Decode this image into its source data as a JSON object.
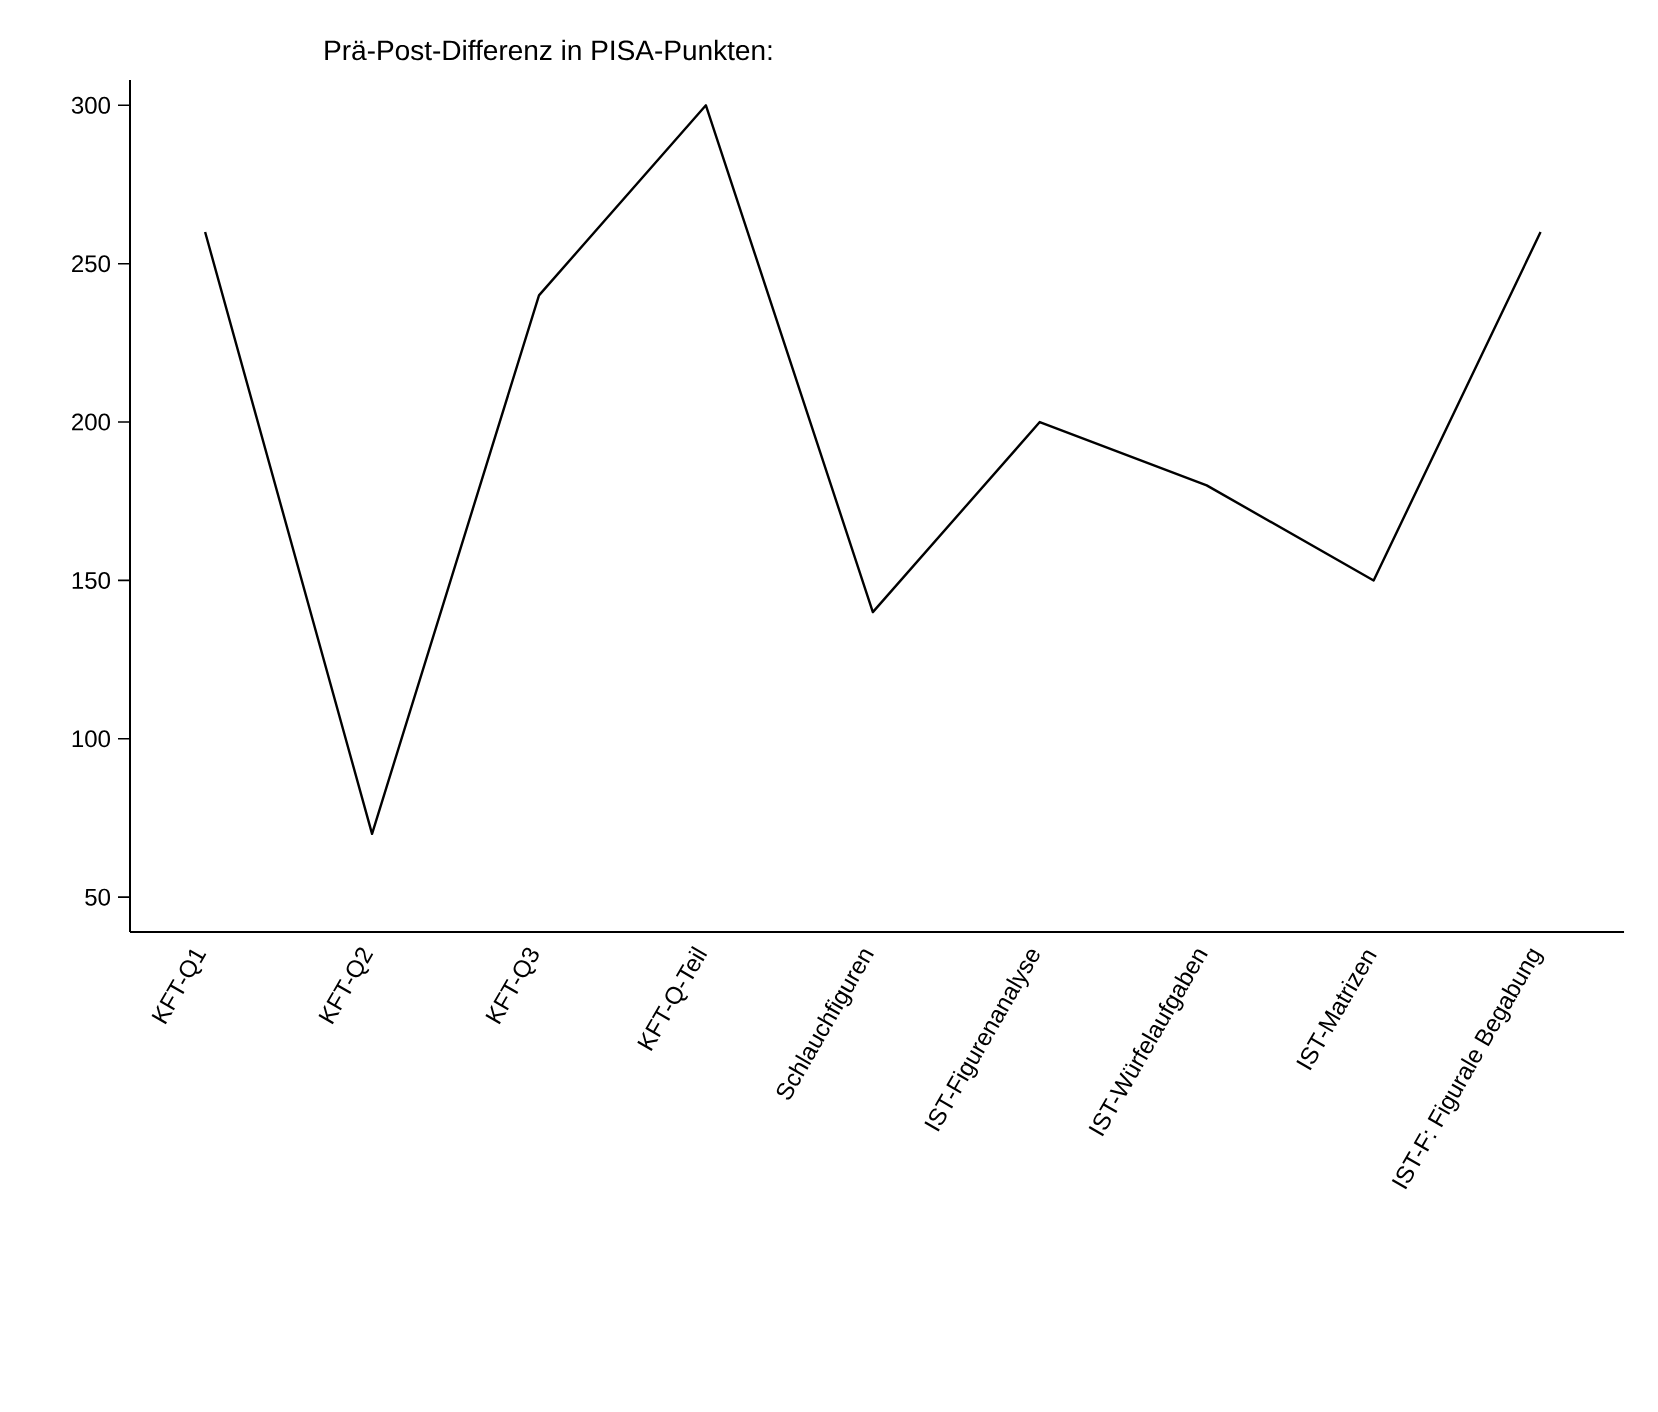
{
  "chart_data": {
    "type": "line",
    "title": "Prä-Post-Differenz in PISA-Punkten:",
    "categories": [
      "KFT-Q1",
      "KFT-Q2",
      "KFT-Q3",
      "KFT-Q-Teil",
      "Schlauchfiguren",
      "IST-Figurenanalyse",
      "IST-Würfelaufgaben",
      "IST-Matrizen",
      "IST-F: Figurale Begabung"
    ],
    "series": [
      {
        "color": "#000000",
        "values": [
          260,
          70,
          240,
          300,
          140,
          200,
          180,
          150,
          260
        ]
      }
    ],
    "ylim": [
      39,
      308
    ],
    "yticks": [
      50,
      100,
      150,
      200,
      250,
      300
    ]
  }
}
